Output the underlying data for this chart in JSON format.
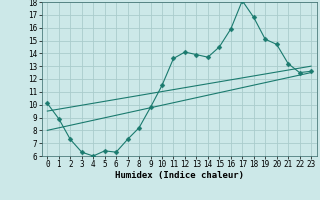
{
  "xlabel": "Humidex (Indice chaleur)",
  "ylabel": "",
  "bg_color": "#cce8e8",
  "grid_color": "#aacccc",
  "line_color": "#1a7a6e",
  "xlim": [
    -0.5,
    23.5
  ],
  "ylim": [
    6,
    18
  ],
  "xticks": [
    0,
    1,
    2,
    3,
    4,
    5,
    6,
    7,
    8,
    9,
    10,
    11,
    12,
    13,
    14,
    15,
    16,
    17,
    18,
    19,
    20,
    21,
    22,
    23
  ],
  "yticks": [
    6,
    7,
    8,
    9,
    10,
    11,
    12,
    13,
    14,
    15,
    16,
    17,
    18
  ],
  "line1_x": [
    0,
    1,
    2,
    3,
    4,
    5,
    6,
    7,
    8,
    9,
    10,
    11,
    12,
    13,
    14,
    15,
    16,
    17,
    18,
    19,
    20,
    21,
    22,
    23
  ],
  "line1_y": [
    10.1,
    8.9,
    7.3,
    6.3,
    6.0,
    6.4,
    6.3,
    7.3,
    8.2,
    9.8,
    11.5,
    13.6,
    14.1,
    13.9,
    13.7,
    14.5,
    15.9,
    18.1,
    16.8,
    15.1,
    14.7,
    13.2,
    12.5,
    12.6
  ],
  "line2_x": [
    0,
    23
  ],
  "line2_y": [
    9.5,
    13.0
  ],
  "line3_x": [
    0,
    23
  ],
  "line3_y": [
    8.0,
    12.5
  ],
  "tick_fontsize": 5.5,
  "xlabel_fontsize": 6.5,
  "marker_size": 2.5
}
